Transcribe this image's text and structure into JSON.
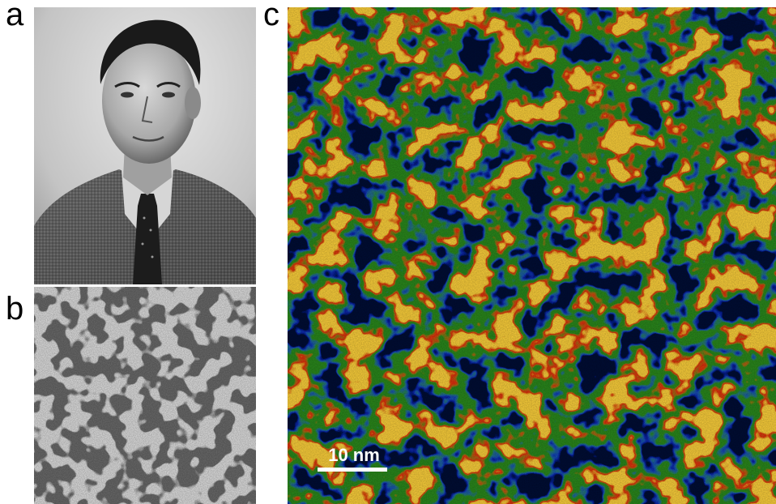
{
  "labels": {
    "a": "a",
    "b": "b",
    "c": "c"
  },
  "scale_bar": {
    "text": "10 nm"
  },
  "colors": {
    "pattern_b_light": "#e6e6e6",
    "pattern_b_dark": "#6e6e6e",
    "pattern_c_background": "#2c8a1c",
    "pattern_c_channels": "#050a35",
    "pattern_c_edges": "#1530c8",
    "pattern_c_blobs": "#e0300e",
    "pattern_c_hot": "#ffd23a"
  }
}
